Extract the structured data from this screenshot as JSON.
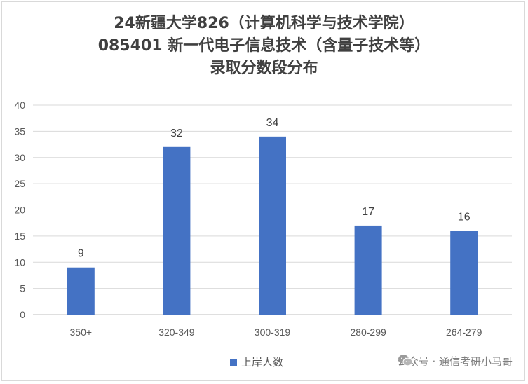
{
  "chart_data": {
    "type": "bar",
    "title_lines": [
      "24新疆大学826（计算机科学与技术学院）",
      "085401 新一代电子信息技术（含量子技术等）",
      "录取分数段分布"
    ],
    "categories": [
      "350+",
      "320-349",
      "300-319",
      "280-299",
      "264-279"
    ],
    "series": [
      {
        "name": "上岸人数",
        "values": [
          9,
          32,
          34,
          17,
          16
        ],
        "color": "#4472c4"
      }
    ],
    "y_ticks": [
      0,
      5,
      10,
      15,
      20,
      25,
      30,
      35,
      40
    ],
    "ylim": [
      0,
      40
    ],
    "grid": true,
    "legend_position": "bottom",
    "data_labels": true
  },
  "watermark": {
    "icon": "wechat-icon",
    "text": "公众号 · 通信考研小马哥"
  }
}
